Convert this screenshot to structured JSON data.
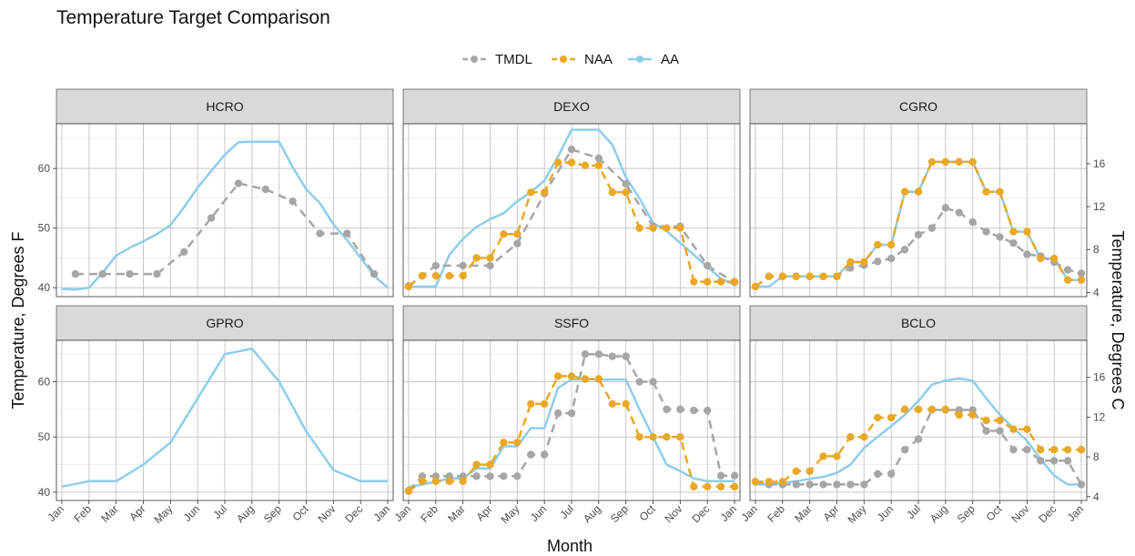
{
  "title": "Temperature Target Comparison",
  "legend": [
    {
      "label": "TMDL",
      "color": "#a6a6a6",
      "style": "dashed-points"
    },
    {
      "label": "NAA",
      "color": "#e9a825",
      "style": "dashed-points"
    },
    {
      "label": "AA",
      "color": "#8ecdea",
      "style": "solid"
    }
  ],
  "axes": {
    "xlabel": "Month",
    "ylabel_left": "Temperature, Degrees F",
    "ylabel_right": "Temperature, Degrees C",
    "x_ticks": [
      "Jan",
      "Feb",
      "Mar",
      "Apr",
      "May",
      "Jun",
      "Jul",
      "Aug",
      "Sep",
      "Oct",
      "Nov",
      "Dec",
      "Jan"
    ],
    "y_ticks_left": [
      40,
      50,
      60
    ],
    "y_ticks_right": [
      4,
      8,
      12,
      16
    ],
    "ylim_F": [
      38.5,
      67.5
    ],
    "grid": true
  },
  "chart_data": [
    {
      "type": "line",
      "panel": "HCRO",
      "series": [
        {
          "name": "TMDL",
          "x": [
            1.5,
            2.5,
            3.5,
            4.5,
            5.5,
            6.5,
            7.5,
            8.5,
            9.5,
            10.5,
            11.5,
            12.5
          ],
          "values": [
            42.3,
            42.3,
            42.3,
            42.3,
            46,
            51.7,
            57.5,
            56.5,
            54.5,
            49.1,
            49.1,
            42.3
          ]
        },
        {
          "name": "AA",
          "x": [
            1,
            1.5,
            2,
            2.5,
            3,
            3.5,
            4,
            4.5,
            5,
            5.5,
            6,
            6.5,
            7,
            7.5,
            8,
            8.5,
            9,
            9.5,
            10,
            10.5,
            11,
            11.5,
            12,
            12.5,
            13
          ],
          "values": [
            39.8,
            39.7,
            40,
            42.5,
            45.4,
            46.7,
            47.8,
            49,
            50.5,
            53.5,
            56.8,
            59.6,
            62.3,
            64.4,
            64.5,
            64.5,
            64.5,
            60.2,
            56.5,
            54.2,
            50.6,
            48,
            45,
            42,
            40
          ]
        }
      ]
    },
    {
      "type": "line",
      "panel": "DEXO",
      "series": [
        {
          "name": "TMDL",
          "x": [
            1,
            2,
            3,
            4,
            5,
            6,
            7,
            8,
            9,
            10,
            11,
            12,
            13
          ],
          "values": [
            40.3,
            43.7,
            43.7,
            43.7,
            47.4,
            55.8,
            63.2,
            61.7,
            57.4,
            50.3,
            50.3,
            43.7,
            40.9
          ]
        },
        {
          "name": "NAA",
          "x": [
            1,
            1.5,
            2,
            2.5,
            3,
            3.5,
            4,
            4.5,
            5,
            5.5,
            6,
            6.5,
            7,
            7.5,
            8,
            8.5,
            9,
            9.5,
            10,
            10.5,
            11,
            11.5,
            12,
            12.5,
            13
          ],
          "values": [
            40.2,
            42,
            42,
            42,
            42,
            45,
            45,
            49,
            49,
            56,
            56,
            61,
            61,
            60.5,
            60.5,
            56,
            56,
            50,
            50,
            50,
            50,
            41,
            41,
            41,
            41
          ]
        },
        {
          "name": "AA",
          "x": [
            1,
            1.5,
            2,
            2.5,
            3,
            3.5,
            4,
            4.5,
            5,
            5.5,
            6,
            6.5,
            7,
            7.5,
            8,
            8.5,
            9,
            9.5,
            10,
            10.5,
            11,
            11.5,
            12,
            12.5,
            13
          ],
          "values": [
            40.2,
            40.2,
            40.2,
            45.5,
            48.2,
            50.2,
            51.5,
            52.5,
            54.5,
            56,
            58,
            62,
            66.5,
            66.5,
            66.5,
            64,
            58.5,
            55,
            50.9,
            49.5,
            47.5,
            45.5,
            43.5,
            41.5,
            40.5
          ]
        }
      ]
    },
    {
      "type": "line",
      "panel": "CGRO",
      "series": [
        {
          "name": "TMDL",
          "x": [
            1,
            1.5,
            2,
            2.5,
            3,
            3.5,
            4,
            4.5,
            5,
            5.5,
            6,
            6.5,
            7,
            7.5,
            8,
            8.5,
            9,
            9.5,
            10,
            10.5,
            11,
            11.5,
            12,
            12.5,
            13
          ],
          "values": [
            40.2,
            41.9,
            41.9,
            41.9,
            41.9,
            41.9,
            41.9,
            43.3,
            43.8,
            44.4,
            44.9,
            46.4,
            48.9,
            50,
            53.4,
            52.6,
            51,
            49.4,
            48.5,
            47.5,
            45.6,
            45.3,
            44.3,
            43,
            42.4
          ]
        },
        {
          "name": "NAA",
          "x": [
            1,
            1.5,
            2,
            2.5,
            3,
            3.5,
            4,
            4.5,
            5,
            5.5,
            6,
            6.5,
            7,
            7.5,
            8,
            8.5,
            9,
            9.5,
            10,
            10.5,
            11,
            11.5,
            12,
            12.5,
            13
          ],
          "values": [
            40.2,
            41.9,
            41.9,
            41.9,
            41.9,
            41.9,
            41.9,
            44.3,
            44.3,
            47.2,
            47.2,
            56.1,
            56.1,
            61.1,
            61.1,
            61.1,
            61.1,
            56.1,
            56.1,
            49.4,
            49.4,
            44.9,
            44.9,
            41.3,
            41.3
          ]
        },
        {
          "name": "AA",
          "x": [
            1,
            1.5,
            2,
            2.5,
            3,
            3.5,
            4,
            4.5,
            5,
            5.5,
            6,
            6.5,
            7,
            7.5,
            8,
            8.5,
            9,
            9.5,
            10,
            10.5,
            11,
            11.5,
            12,
            12.5,
            13
          ],
          "values": [
            40.2,
            40.2,
            41.9,
            41.9,
            41.9,
            41.9,
            41.9,
            44.3,
            44.3,
            47.2,
            47.2,
            56.1,
            56.1,
            61.1,
            61.1,
            61.1,
            61.1,
            56.1,
            56.1,
            49.4,
            49.4,
            44.9,
            44.9,
            41.3,
            41.3
          ]
        }
      ]
    },
    {
      "type": "line",
      "panel": "GPRO",
      "series": [
        {
          "name": "AA",
          "x": [
            1,
            2,
            3,
            4,
            5,
            6,
            7,
            8,
            9,
            10,
            11,
            12,
            13
          ],
          "values": [
            41,
            42,
            42,
            45,
            49,
            57,
            65,
            66,
            60,
            51,
            44,
            42,
            42
          ]
        }
      ]
    },
    {
      "type": "line",
      "panel": "SSFO",
      "series": [
        {
          "name": "TMDL",
          "x": [
            1,
            1.5,
            2,
            2.5,
            3,
            3.5,
            4,
            4.5,
            5,
            5.5,
            6,
            6.5,
            7,
            7.5,
            8,
            8.5,
            9,
            9.5,
            10,
            10.5,
            11,
            11.5,
            12,
            12.5,
            13
          ],
          "values": [
            40.3,
            42.9,
            42.9,
            42.9,
            42.9,
            42.9,
            42.9,
            42.9,
            42.9,
            46.8,
            46.8,
            54.3,
            54.3,
            65,
            65,
            64.6,
            64.6,
            60,
            60,
            55,
            55,
            54.8,
            54.8,
            43,
            43
          ]
        },
        {
          "name": "NAA",
          "x": [
            1,
            1.5,
            2,
            2.5,
            3,
            3.5,
            4,
            4.5,
            5,
            5.5,
            6,
            6.5,
            7,
            7.5,
            8,
            8.5,
            9,
            9.5,
            10,
            10.5,
            11,
            11.5,
            12,
            12.5,
            13
          ],
          "values": [
            40.2,
            42,
            42,
            42,
            42,
            45,
            45,
            49,
            49,
            56,
            56,
            61,
            61,
            60.5,
            60.5,
            56,
            56,
            50,
            50,
            50,
            50,
            41,
            41,
            41,
            41
          ]
        },
        {
          "name": "AA",
          "x": [
            1,
            1.5,
            2,
            2.5,
            3,
            3.5,
            4,
            4.5,
            5,
            5.5,
            6,
            6.5,
            7,
            7.5,
            8,
            8.5,
            9,
            9.5,
            10,
            10.5,
            11,
            11.5,
            12,
            12.5,
            13
          ],
          "values": [
            40.9,
            41.4,
            41.9,
            42.5,
            42.5,
            44.3,
            44.3,
            48.3,
            48.3,
            51.6,
            51.6,
            58.9,
            60.4,
            60.4,
            60.4,
            60.4,
            60.4,
            55,
            50,
            45,
            43.8,
            42.5,
            42,
            42,
            42
          ]
        }
      ]
    },
    {
      "type": "line",
      "panel": "BCLO",
      "series": [
        {
          "name": "TMDL",
          "x": [
            1,
            1.5,
            2,
            2.5,
            3,
            3.5,
            4,
            4.5,
            5,
            5.5,
            6,
            6.5,
            7,
            7.5,
            8,
            8.5,
            9,
            9.5,
            10,
            10.5,
            11,
            11.5,
            12,
            12.5,
            13
          ],
          "values": [
            41.9,
            41.4,
            41.4,
            41.4,
            41.4,
            41.4,
            41.4,
            41.4,
            41.4,
            43.3,
            43.3,
            47.7,
            49.6,
            54.9,
            54.9,
            54.9,
            54.9,
            51.1,
            51.1,
            47.7,
            47.7,
            45.7,
            45.7,
            45.7,
            41.4
          ]
        },
        {
          "name": "NAA",
          "x": [
            1,
            1.5,
            2,
            2.5,
            3,
            3.5,
            4,
            4.5,
            5,
            5.5,
            6,
            6.5,
            7,
            7.5,
            8,
            8.5,
            9,
            9.5,
            10,
            10.5,
            11,
            11.5,
            12,
            12.5,
            13
          ],
          "values": [
            41.9,
            41.9,
            41.9,
            43.8,
            43.8,
            46.5,
            46.5,
            50,
            50,
            53.5,
            53.5,
            55,
            55,
            55,
            55,
            54,
            54,
            53,
            53,
            51.4,
            51.4,
            47.7,
            47.7,
            47.7,
            47.7
          ]
        },
        {
          "name": "AA",
          "x": [
            1,
            1.5,
            2,
            2.5,
            3,
            3.5,
            4,
            4.5,
            5,
            5.5,
            6,
            6.5,
            7,
            7.5,
            8,
            8.5,
            9,
            9.5,
            10,
            10.5,
            11,
            11.5,
            12,
            12.5,
            13
          ],
          "values": [
            41.4,
            41.4,
            41.7,
            42,
            42.4,
            42.8,
            43.5,
            45,
            48,
            50,
            52,
            54,
            56.5,
            59.5,
            60.2,
            60.6,
            60.2,
            57,
            54,
            51.6,
            49.3,
            46,
            43,
            41.4,
            41.4
          ]
        }
      ]
    }
  ]
}
